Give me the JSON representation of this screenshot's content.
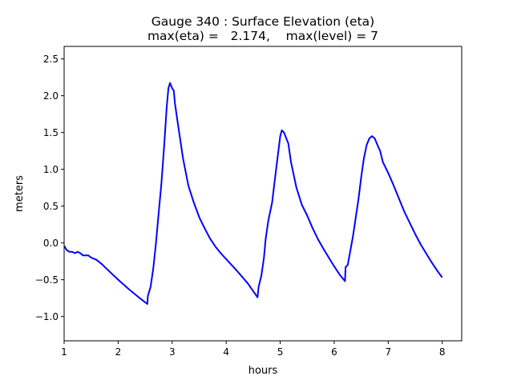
{
  "chart_data": {
    "type": "line",
    "title": "Gauge 340 : Surface Elevation (eta)",
    "subtitle": "max(eta) =   2.174,    max(level) = 7",
    "xlabel": "hours",
    "ylabel": "meters",
    "xlim": [
      1.0,
      8.36
    ],
    "ylim": [
      -1.33,
      2.67
    ],
    "xticks": [
      1,
      2,
      3,
      4,
      5,
      6,
      7,
      8
    ],
    "xtick_labels": [
      "1",
      "2",
      "3",
      "4",
      "5",
      "6",
      "7",
      "8"
    ],
    "yticks": [
      -1.0,
      -0.5,
      0.0,
      0.5,
      1.0,
      1.5,
      2.0,
      2.5
    ],
    "ytick_labels": [
      "−1.0",
      "−0.5",
      "0.0",
      "0.5",
      "1.0",
      "1.5",
      "2.0",
      "2.5"
    ],
    "grid": false,
    "series": [
      {
        "name": "eta",
        "color": "#0000ff",
        "x": [
          1.0,
          1.05,
          1.1,
          1.15,
          1.2,
          1.25,
          1.3,
          1.35,
          1.45,
          1.5,
          1.6,
          1.7,
          1.8,
          2.0,
          2.2,
          2.4,
          2.54,
          2.55,
          2.6,
          2.65,
          2.7,
          2.75,
          2.8,
          2.85,
          2.9,
          2.93,
          2.96,
          3.0,
          3.03,
          3.05,
          3.1,
          3.15,
          3.2,
          3.3,
          3.4,
          3.5,
          3.6,
          3.7,
          3.8,
          3.9,
          4.0,
          4.2,
          4.4,
          4.58,
          4.6,
          4.65,
          4.7,
          4.73,
          4.78,
          4.85,
          4.9,
          4.95,
          5.0,
          5.03,
          5.07,
          5.15,
          5.2,
          5.3,
          5.4,
          5.5,
          5.6,
          5.7,
          5.8,
          5.9,
          6.0,
          6.1,
          6.2,
          6.21,
          6.25,
          6.3,
          6.35,
          6.4,
          6.45,
          6.5,
          6.55,
          6.6,
          6.65,
          6.7,
          6.75,
          6.8,
          6.85,
          6.9,
          7.0,
          7.1,
          7.2,
          7.3,
          7.4,
          7.5,
          7.6,
          7.7,
          7.8,
          7.9,
          8.0
        ],
        "y": [
          -0.04,
          -0.1,
          -0.12,
          -0.12,
          -0.14,
          -0.12,
          -0.14,
          -0.17,
          -0.17,
          -0.2,
          -0.23,
          -0.29,
          -0.36,
          -0.5,
          -0.63,
          -0.75,
          -0.83,
          -0.72,
          -0.6,
          -0.35,
          0.0,
          0.4,
          0.8,
          1.3,
          1.85,
          2.1,
          2.174,
          2.1,
          2.07,
          1.9,
          1.65,
          1.4,
          1.15,
          0.78,
          0.55,
          0.35,
          0.2,
          0.06,
          -0.05,
          -0.14,
          -0.22,
          -0.38,
          -0.55,
          -0.74,
          -0.6,
          -0.45,
          -0.2,
          0.05,
          0.3,
          0.55,
          0.85,
          1.15,
          1.45,
          1.53,
          1.5,
          1.35,
          1.1,
          0.75,
          0.52,
          0.37,
          0.2,
          0.05,
          -0.08,
          -0.2,
          -0.32,
          -0.43,
          -0.52,
          -0.33,
          -0.3,
          -0.1,
          0.1,
          0.35,
          0.6,
          0.9,
          1.15,
          1.33,
          1.42,
          1.45,
          1.42,
          1.33,
          1.25,
          1.1,
          0.95,
          0.78,
          0.6,
          0.42,
          0.27,
          0.12,
          -0.02,
          -0.14,
          -0.26,
          -0.37,
          -0.47
        ]
      }
    ]
  }
}
